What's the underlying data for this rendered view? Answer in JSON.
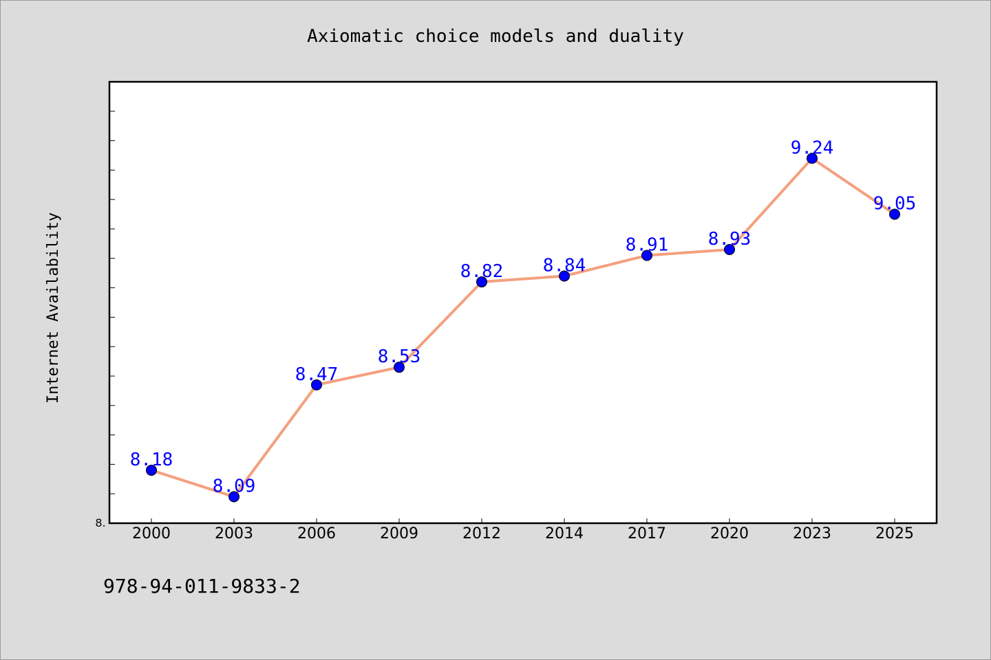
{
  "chart_data": {
    "type": "line",
    "title": "Axiomatic choice models and duality",
    "xlabel": "",
    "ylabel": "Internet Availability",
    "categories": [
      "2000",
      "2003",
      "2006",
      "2009",
      "2012",
      "2014",
      "2017",
      "2020",
      "2023",
      "2025"
    ],
    "series": [
      {
        "values": [
          8.18,
          8.09,
          8.47,
          8.53,
          8.82,
          8.84,
          8.91,
          8.93,
          9.24,
          9.05
        ]
      }
    ],
    "data_labels": [
      "8.18",
      "8.09",
      "8.47",
      "8.53",
      "8.82",
      "8.84",
      "8.91",
      "8.93",
      "9.24",
      "9.05"
    ],
    "ylim": [
      8.0,
      9.5
    ],
    "ytick_label": "8.",
    "grid": false,
    "colors": {
      "line": "#f4a07e",
      "marker": "#0000ff",
      "label": "#0000ff",
      "background": "#dcdcdc",
      "plot_bg": "#ffffff"
    }
  },
  "footnote": "978-94-011-9833-2"
}
